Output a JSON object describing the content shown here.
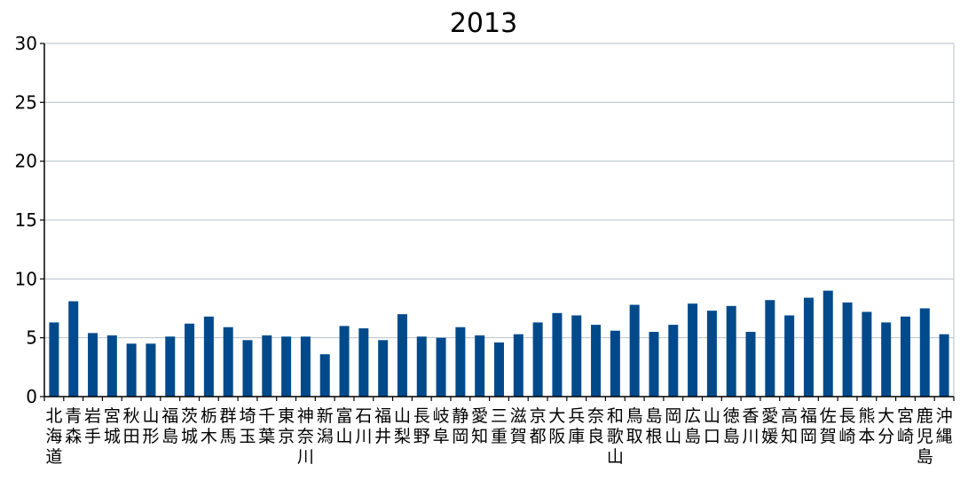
{
  "chart_data": {
    "type": "bar",
    "title": "2013",
    "xlabel": "",
    "ylabel": "",
    "ylim": [
      0,
      30
    ],
    "yticks": [
      "0",
      "5",
      "10",
      "15",
      "20",
      "25",
      "30"
    ],
    "grid": true,
    "bar_color": "#004a8c",
    "grid_color": "#b5c3c9",
    "categories": [
      "北海道",
      "青森",
      "岩手",
      "宮城",
      "秋田",
      "山形",
      "福島",
      "茨城",
      "栃木",
      "群馬",
      "埼玉",
      "千葉",
      "東京",
      "神奈川",
      "新潟",
      "富山",
      "石川",
      "福井",
      "山梨",
      "長野",
      "岐阜",
      "静岡",
      "愛知",
      "三重",
      "滋賀",
      "京都",
      "大阪",
      "兵庫",
      "奈良",
      "和歌山",
      "鳥取",
      "島根",
      "岡山",
      "広島",
      "山口",
      "徳島",
      "香川",
      "愛媛",
      "高知",
      "福岡",
      "佐賀",
      "長崎",
      "熊本",
      "大分",
      "宮崎",
      "鹿児島",
      "沖縄"
    ],
    "values": [
      6.3,
      8.1,
      5.4,
      5.2,
      4.5,
      4.5,
      5.1,
      6.2,
      6.8,
      5.9,
      4.8,
      5.2,
      5.1,
      5.1,
      3.6,
      6.0,
      5.8,
      4.8,
      7.0,
      5.1,
      5.0,
      5.9,
      5.2,
      4.6,
      5.3,
      6.3,
      7.1,
      6.9,
      6.1,
      5.6,
      7.8,
      5.5,
      6.1,
      7.9,
      7.3,
      7.7,
      5.5,
      8.2,
      6.9,
      8.4,
      9.0,
      8.0,
      7.2,
      6.3,
      6.8,
      7.5,
      5.3
    ]
  }
}
